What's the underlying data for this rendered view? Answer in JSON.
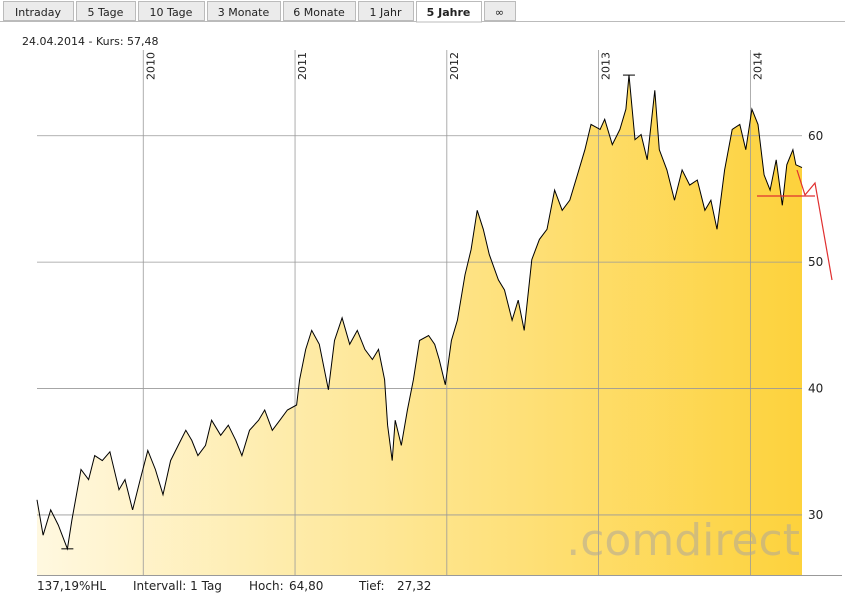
{
  "tabs": [
    "Intraday",
    "5 Tage",
    "10 Tage",
    "3 Monate",
    "6 Monate",
    "1 Jahr",
    "5 Jahre",
    "∞"
  ],
  "active_tab": 6,
  "chart_data": {
    "type": "area",
    "subtitle": "24.04.2014  - Kurs: 57,48",
    "watermark": ".comdirect",
    "footer": [
      "137,19%HL",
      "Intervall: 1 Tag",
      "Hoch:",
      "64,80",
      "Tief:",
      "27,32"
    ],
    "xlim": [
      2009.3,
      2014.34
    ],
    "xticks": [
      2010,
      2011,
      2012,
      2013,
      2014
    ],
    "ylim": [
      25.25,
      69.0
    ],
    "yticks": [
      30,
      40,
      50,
      60
    ],
    "grid": true,
    "x": [
      2009.3,
      2009.34,
      2009.39,
      2009.44,
      2009.5,
      2009.53,
      2009.59,
      2009.64,
      2009.68,
      2009.73,
      2009.78,
      2009.84,
      2009.88,
      2009.93,
      2009.98,
      2010.03,
      2010.08,
      2010.13,
      2010.18,
      2010.23,
      2010.28,
      2010.32,
      2010.36,
      2010.41,
      2010.45,
      2010.51,
      2010.56,
      2010.61,
      2010.65,
      2010.7,
      2010.76,
      2010.8,
      2010.85,
      2010.9,
      2010.95,
      2011.01,
      2011.03,
      2011.07,
      2011.11,
      2011.16,
      2011.22,
      2011.26,
      2011.31,
      2011.36,
      2011.41,
      2011.46,
      2011.51,
      2011.55,
      2011.59,
      2011.61,
      2011.64,
      2011.66,
      2011.7,
      2011.74,
      2011.78,
      2011.82,
      2011.88,
      2011.92,
      2011.95,
      2011.99,
      2012.03,
      2012.07,
      2012.12,
      2012.16,
      2012.2,
      2012.24,
      2012.28,
      2012.34,
      2012.38,
      2012.43,
      2012.47,
      2012.51,
      2012.56,
      2012.61,
      2012.66,
      2012.71,
      2012.76,
      2012.81,
      2012.86,
      2012.91,
      2012.95,
      2013.01,
      2013.04,
      2013.09,
      2013.14,
      2013.18,
      2013.2,
      2013.24,
      2013.28,
      2013.32,
      2013.37,
      2013.4,
      2013.45,
      2013.5,
      2013.55,
      2013.6,
      2013.65,
      2013.7,
      2013.74,
      2013.78,
      2013.83,
      2013.88,
      2013.93,
      2013.97,
      2014.01,
      2014.05,
      2014.09,
      2014.13,
      2014.17,
      2014.21,
      2014.24,
      2014.28,
      2014.3,
      2014.34
    ],
    "series": [
      {
        "color": "#000000",
        "fill_from": "#fff8e0",
        "fill_to": "#fdd23c",
        "values": [
          31.2,
          28.4,
          30.4,
          29.2,
          27.32,
          29.6,
          33.6,
          32.8,
          34.7,
          34.3,
          35.0,
          32.0,
          32.8,
          30.4,
          32.8,
          35.1,
          33.6,
          31.6,
          34.3,
          35.5,
          36.7,
          35.9,
          34.7,
          35.5,
          37.5,
          36.3,
          37.1,
          35.9,
          34.7,
          36.7,
          37.5,
          38.3,
          36.7,
          37.5,
          38.3,
          38.7,
          40.7,
          43.1,
          44.6,
          43.5,
          39.9,
          43.8,
          45.6,
          43.5,
          44.6,
          43.1,
          42.3,
          43.1,
          40.7,
          37.1,
          34.3,
          37.5,
          35.5,
          38.3,
          40.7,
          43.8,
          44.2,
          43.5,
          42.3,
          40.3,
          43.8,
          45.4,
          49.0,
          51.0,
          54.1,
          52.6,
          50.6,
          48.6,
          47.8,
          45.4,
          47.0,
          44.6,
          50.2,
          51.8,
          52.6,
          55.7,
          54.1,
          54.9,
          56.9,
          58.9,
          60.9,
          60.5,
          61.3,
          59.3,
          60.5,
          62.1,
          64.8,
          59.7,
          60.1,
          58.1,
          63.6,
          58.9,
          57.3,
          54.9,
          57.3,
          56.1,
          56.5,
          54.1,
          54.9,
          52.6,
          57.3,
          60.5,
          60.9,
          58.9,
          62.1,
          60.9,
          56.9,
          55.7,
          58.1,
          54.5,
          57.7,
          58.9,
          57.7,
          57.48
        ]
      }
    ]
  }
}
